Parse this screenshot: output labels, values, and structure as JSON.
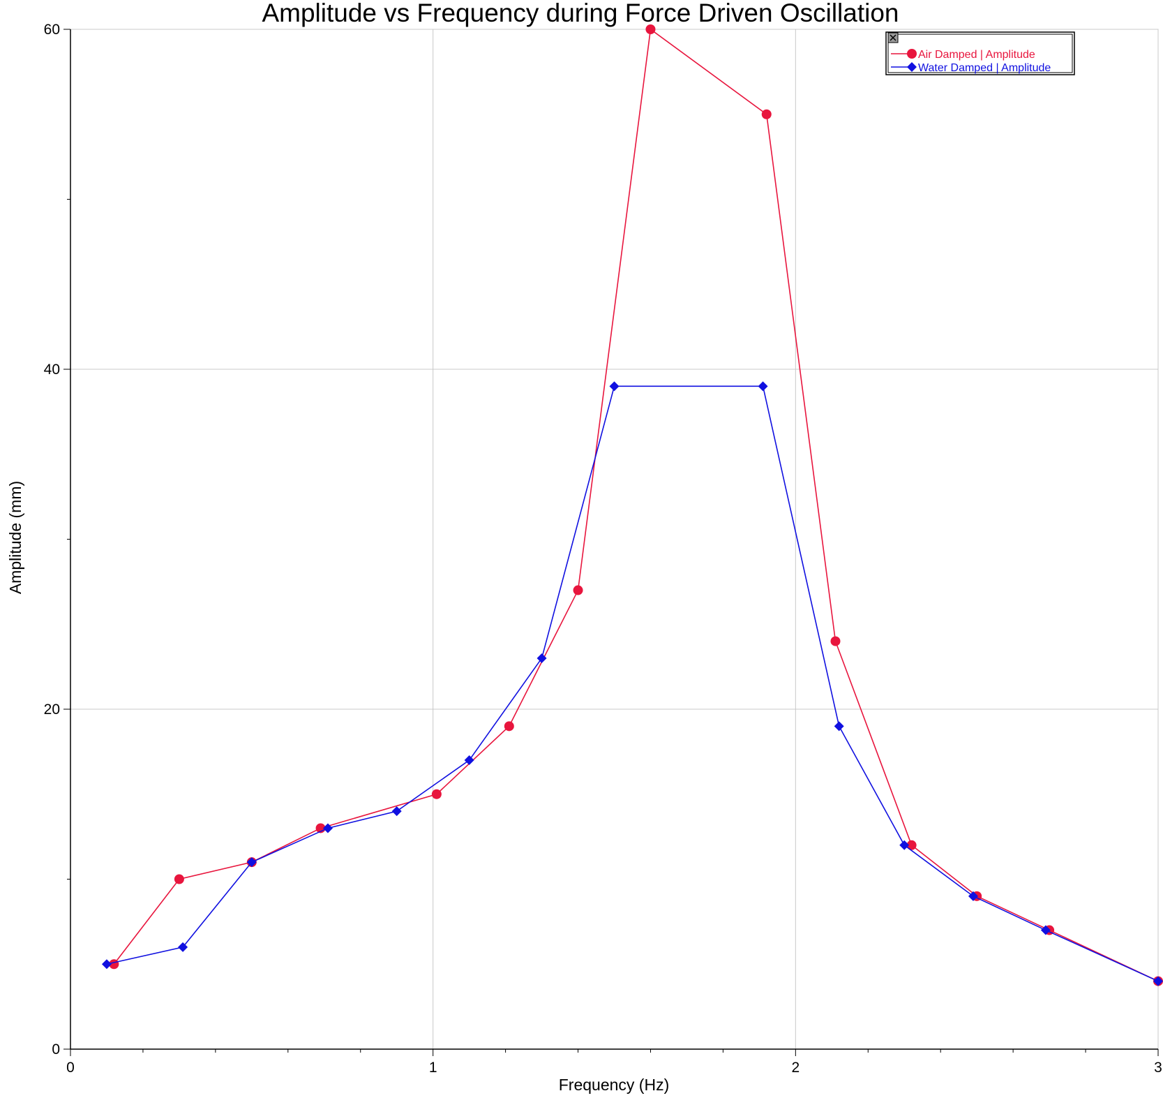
{
  "chart_data": {
    "type": "line",
    "title": "Amplitude vs Frequency during Force Driven Oscillation",
    "xlabel": "Frequency (Hz)",
    "ylabel": "Amplitude (mm)",
    "xlim": [
      0,
      3
    ],
    "ylim": [
      0,
      60
    ],
    "x_ticks": [
      0,
      1,
      2,
      3
    ],
    "x_tick_labels": [
      "0",
      "1",
      "2",
      "3"
    ],
    "y_ticks": [
      0,
      20,
      40,
      60
    ],
    "y_tick_labels": [
      "0",
      "20",
      "40",
      "60"
    ],
    "grid": true,
    "legend_position": "top-right",
    "series": [
      {
        "name": "Air Damped | Amplitude",
        "color": "#e8153d",
        "marker": "circle",
        "x": [
          0.12,
          0.3,
          0.5,
          0.69,
          1.01,
          1.21,
          1.4,
          1.6,
          1.92,
          2.11,
          2.32,
          2.5,
          2.7,
          3.0
        ],
        "y": [
          5.0,
          10.0,
          11.0,
          13.0,
          15.0,
          19.0,
          27.0,
          60.0,
          55.0,
          24.0,
          12.0,
          9.0,
          7.0,
          4.0
        ]
      },
      {
        "name": "Water Damped | Amplitude",
        "color": "#1010e0",
        "marker": "diamond",
        "x": [
          0.1,
          0.31,
          0.5,
          0.71,
          0.9,
          1.1,
          1.3,
          1.5,
          1.91,
          2.12,
          2.3,
          2.49,
          2.69,
          3.0
        ],
        "y": [
          5.0,
          6.0,
          11.0,
          13.0,
          14.0,
          17.0,
          23.0,
          39.0,
          39.0,
          19.0,
          12.0,
          9.0,
          7.0,
          4.0
        ]
      }
    ]
  }
}
